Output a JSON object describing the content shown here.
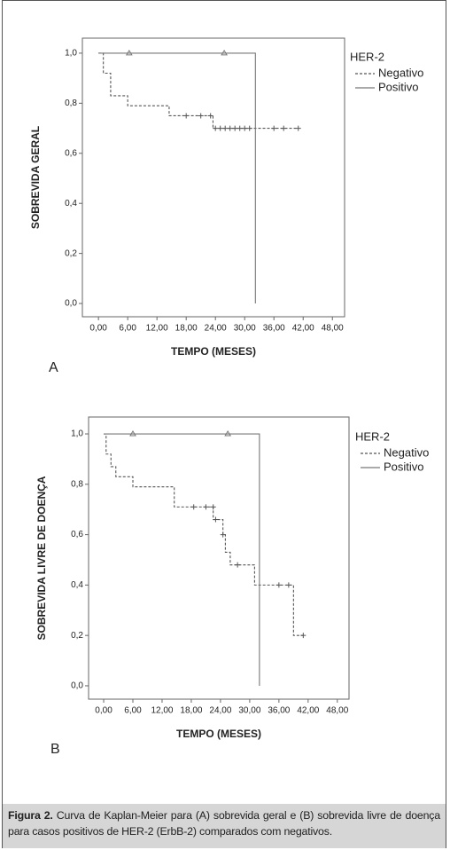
{
  "chart_data": [
    {
      "type": "line",
      "step": true,
      "panel_label": "A",
      "x_label": "TEMPO (MESES)",
      "y_label": "SOBREVIDA GERAL",
      "legend_title": "HER-2",
      "legend": "right",
      "xlim": [
        -3.3,
        50.5
      ],
      "ylim": [
        -0.053,
        1.06
      ],
      "xticks": [
        {
          "value": 0,
          "label": "0,00"
        },
        {
          "value": 6,
          "label": "6,00"
        },
        {
          "value": 12,
          "label": "12,00"
        },
        {
          "value": 18,
          "label": "18,00"
        },
        {
          "value": 24,
          "label": "24,00"
        },
        {
          "value": 30,
          "label": "30,00"
        },
        {
          "value": 36,
          "label": "36,00"
        },
        {
          "value": 42,
          "label": "42,00"
        },
        {
          "value": 48,
          "label": "48,00"
        }
      ],
      "yticks": [
        {
          "value": 0,
          "label": "0,0"
        },
        {
          "value": 0.2,
          "label": "0,2"
        },
        {
          "value": 0.4,
          "label": "0,4"
        },
        {
          "value": 0.6,
          "label": "0,6"
        },
        {
          "value": 0.8,
          "label": "0,8"
        },
        {
          "value": 1,
          "label": "1,0"
        }
      ],
      "series": [
        {
          "name": "Negativo",
          "color": "#555555",
          "line_style": "dashed",
          "marker": "plus",
          "x": [
            0,
            1,
            2.5,
            6,
            14.5,
            23.5,
            41
          ],
          "values": [
            1,
            0.92,
            0.83,
            0.79,
            0.75,
            0.7,
            0.7
          ],
          "censored_x": [
            18,
            21,
            23,
            24,
            25,
            26,
            27,
            28,
            29,
            30,
            31,
            36,
            38,
            41
          ],
          "censored_values": [
            0.75,
            0.75,
            0.75,
            0.7,
            0.7,
            0.7,
            0.7,
            0.7,
            0.7,
            0.7,
            0.7,
            0.7,
            0.7,
            0.7
          ]
        },
        {
          "name": "Positivo",
          "color": "#777777",
          "line_style": "solid",
          "marker": "triangle",
          "x": [
            0,
            32.2
          ],
          "values": [
            1,
            0
          ],
          "censored_x": [
            6.3,
            25.8
          ],
          "censored_values": [
            1,
            1
          ]
        }
      ]
    },
    {
      "type": "line",
      "step": true,
      "panel_label": "B",
      "x_label": "TEMPO (MESES)",
      "y_label": "SOBREVIDA LIVRE DE DOENÇA",
      "legend_title": "HER-2",
      "legend": "right",
      "xlim": [
        -3.1,
        50.4
      ],
      "ylim": [
        -0.053,
        1.067
      ],
      "xticks": [
        {
          "value": 0,
          "label": "0,00"
        },
        {
          "value": 6,
          "label": "6,00"
        },
        {
          "value": 12,
          "label": "12,00"
        },
        {
          "value": 18,
          "label": "18,00"
        },
        {
          "value": 24,
          "label": "24,00"
        },
        {
          "value": 30,
          "label": "30,00"
        },
        {
          "value": 36,
          "label": "36,00"
        },
        {
          "value": 42,
          "label": "42,00"
        },
        {
          "value": 48,
          "label": "48,00"
        }
      ],
      "yticks": [
        {
          "value": 0,
          "label": "0,0"
        },
        {
          "value": 0.2,
          "label": "0,2"
        },
        {
          "value": 0.4,
          "label": "0,4"
        },
        {
          "value": 0.6,
          "label": "0,6"
        },
        {
          "value": 0.8,
          "label": "0,8"
        },
        {
          "value": 1,
          "label": "1,0"
        }
      ],
      "series": [
        {
          "name": "Negativo",
          "color": "#555555",
          "line_style": "dashed",
          "marker": "plus",
          "x": [
            0,
            0.5,
            1.5,
            2.5,
            6,
            14.5,
            22.5,
            24.5,
            25,
            26,
            31,
            39,
            41
          ],
          "values": [
            1,
            0.92,
            0.87,
            0.83,
            0.79,
            0.71,
            0.66,
            0.6,
            0.53,
            0.48,
            0.4,
            0.2,
            0.2
          ],
          "censored_x": [
            18.5,
            21,
            22.5,
            23,
            24.5,
            27.5,
            36,
            38,
            41
          ],
          "censored_values": [
            0.71,
            0.71,
            0.71,
            0.66,
            0.6,
            0.48,
            0.4,
            0.4,
            0.2
          ]
        },
        {
          "name": "Positivo",
          "color": "#777777",
          "line_style": "solid",
          "marker": "triangle",
          "x": [
            0,
            32
          ],
          "values": [
            1,
            0
          ],
          "censored_x": [
            6,
            25.5
          ],
          "censored_values": [
            1,
            1
          ]
        }
      ]
    }
  ],
  "caption": {
    "label": "Figura 2.",
    "text": "Curva de Kaplan-Meier para (A) sobrevida geral e (B) sobrevida livre de doença para casos positivos de HER-2 (ErbB-2) comparados com negativos."
  }
}
